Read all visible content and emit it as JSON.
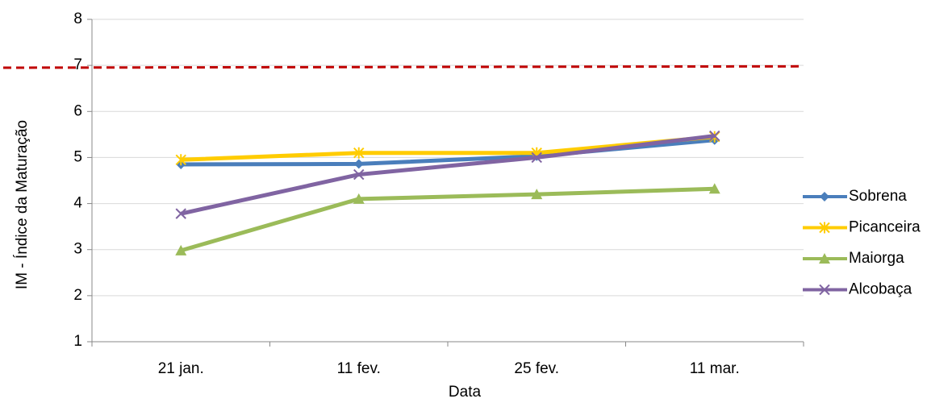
{
  "chart_data": {
    "type": "line",
    "x_label": "Data",
    "y_label": "IM - Índice da Maturação",
    "categories": [
      "21 jan.",
      "11 fev.",
      "25 fev.",
      "11 mar."
    ],
    "series": [
      {
        "name": "Sobrena",
        "color": "#4a7ebb",
        "marker": "diamond",
        "values": [
          4.85,
          4.86,
          5.03,
          5.38
        ]
      },
      {
        "name": "Picanceira",
        "color": "#ffcc00",
        "marker": "star",
        "values": [
          4.95,
          5.1,
          5.1,
          5.45
        ]
      },
      {
        "name": "Maiorga",
        "color": "#9bbb59",
        "marker": "triangle",
        "values": [
          2.98,
          4.1,
          4.2,
          4.32
        ]
      },
      {
        "name": "Alcobaça",
        "color": "#8064a2",
        "marker": "x",
        "values": [
          3.78,
          4.63,
          5.0,
          5.47
        ]
      }
    ],
    "reference_line": {
      "color": "#c00000",
      "values": [
        6.95,
        6.98
      ]
    },
    "ylim": [
      1,
      8
    ],
    "yticks": [
      1,
      2,
      3,
      4,
      5,
      6,
      7,
      8
    ],
    "grid": true,
    "legend": "right"
  }
}
